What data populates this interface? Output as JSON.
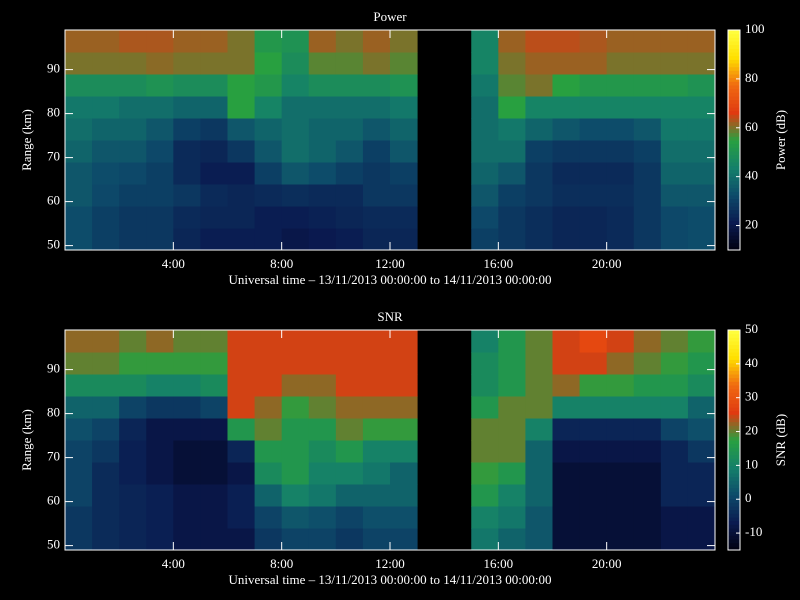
{
  "chart_data": [
    {
      "type": "heatmap",
      "title": "Power",
      "x_label": "Universal time – 13/11/2013 00:00:00 to 14/11/2013 00:00:00",
      "y_label": "Range (km)",
      "colorbar_label": "Power (dB)",
      "x_bins": [
        0,
        1,
        2,
        3,
        4,
        5,
        6,
        7,
        8,
        9,
        10,
        11,
        12,
        13,
        14,
        15,
        16,
        17,
        18,
        19,
        20,
        21,
        22,
        23,
        24
      ],
      "y_bins": [
        49,
        54,
        59,
        64,
        69,
        74,
        79,
        84,
        89,
        94,
        99
      ],
      "xlim": [
        0,
        24
      ],
      "ylim": [
        49,
        99
      ],
      "zlim": [
        10,
        100
      ],
      "xticks": [
        {
          "value": 4,
          "label": "4:00"
        },
        {
          "value": 8,
          "label": "8:00"
        },
        {
          "value": 12,
          "label": "12:00"
        },
        {
          "value": 16,
          "label": "16:00"
        },
        {
          "value": 20,
          "label": "20:00"
        }
      ],
      "yticks": [
        50,
        60,
        70,
        80,
        90
      ],
      "zticks": [
        20,
        40,
        60,
        80,
        100
      ],
      "colors": [
        "#000010",
        "#0a1a50",
        "#0d4a6a",
        "#14806a",
        "#28a040",
        "#e03a10",
        "#f06a10",
        "#ffe000",
        "#ffff40"
      ],
      "values": [
        [
          33,
          30,
          28,
          28,
          24,
          22,
          22,
          22,
          20,
          21,
          22,
          24,
          24,
          null,
          null,
          30,
          28,
          26,
          24,
          24,
          25,
          28,
          32,
          33
        ],
        [
          33,
          30,
          28,
          28,
          25,
          24,
          24,
          22,
          22,
          23,
          24,
          25,
          25,
          null,
          null,
          32,
          28,
          26,
          24,
          24,
          25,
          28,
          32,
          33
        ],
        [
          35,
          32,
          30,
          30,
          28,
          25,
          24,
          25,
          26,
          25,
          25,
          28,
          28,
          null,
          null,
          35,
          30,
          28,
          26,
          26,
          26,
          28,
          35,
          35
        ],
        [
          35,
          33,
          32,
          30,
          25,
          22,
          22,
          30,
          35,
          33,
          30,
          28,
          30,
          null,
          null,
          38,
          35,
          28,
          25,
          25,
          25,
          28,
          38,
          38
        ],
        [
          38,
          35,
          35,
          32,
          25,
          24,
          28,
          35,
          40,
          38,
          35,
          30,
          35,
          null,
          null,
          40,
          40,
          30,
          28,
          28,
          28,
          30,
          40,
          40
        ],
        [
          40,
          38,
          38,
          35,
          30,
          28,
          35,
          38,
          40,
          38,
          38,
          35,
          38,
          null,
          null,
          40,
          42,
          38,
          35,
          33,
          33,
          35,
          42,
          42
        ],
        [
          42,
          42,
          40,
          40,
          38,
          38,
          55,
          45,
          40,
          40,
          40,
          40,
          42,
          null,
          null,
          40,
          55,
          45,
          45,
          45,
          45,
          45,
          45,
          45
        ],
        [
          48,
          48,
          48,
          50,
          48,
          48,
          55,
          52,
          45,
          48,
          48,
          48,
          50,
          null,
          null,
          42,
          58,
          60,
          55,
          52,
          52,
          52,
          52,
          50
        ],
        [
          60,
          60,
          60,
          61,
          60,
          60,
          60,
          55,
          48,
          58,
          58,
          60,
          58,
          null,
          null,
          45,
          60,
          62,
          62,
          62,
          60,
          60,
          60,
          60
        ],
        [
          62,
          62,
          63,
          63,
          62,
          62,
          60,
          52,
          50,
          62,
          60,
          62,
          60,
          null,
          null,
          45,
          62,
          64,
          64,
          63,
          62,
          62,
          62,
          62
        ]
      ]
    },
    {
      "type": "heatmap",
      "title": "SNR",
      "x_label": "Universal time – 13/11/2013 00:00:00 to 14/11/2013 00:00:00",
      "y_label": "Range (km)",
      "colorbar_label": "SNR (dB)",
      "x_bins": [
        0,
        1,
        2,
        3,
        4,
        5,
        6,
        7,
        8,
        9,
        10,
        11,
        12,
        13,
        14,
        15,
        16,
        17,
        18,
        19,
        20,
        21,
        22,
        23,
        24
      ],
      "y_bins": [
        49,
        54,
        59,
        64,
        69,
        74,
        79,
        84,
        89,
        94,
        99
      ],
      "xlim": [
        0,
        24
      ],
      "ylim": [
        49,
        99
      ],
      "zlim": [
        -15,
        50
      ],
      "xticks": [
        {
          "value": 4,
          "label": "4:00"
        },
        {
          "value": 8,
          "label": "8:00"
        },
        {
          "value": 12,
          "label": "12:00"
        },
        {
          "value": 16,
          "label": "16:00"
        },
        {
          "value": 20,
          "label": "20:00"
        }
      ],
      "yticks": [
        50,
        60,
        70,
        80,
        90
      ],
      "zticks": [
        -10,
        0,
        10,
        20,
        30,
        40,
        50
      ],
      "colors": [
        "#000010",
        "#0a1a50",
        "#0d4a6a",
        "#14806a",
        "#28a040",
        "#e03a10",
        "#f06a10",
        "#ffe000",
        "#ffff40"
      ],
      "values": [
        [
          -2,
          -4,
          -5,
          -6,
          -8,
          -8,
          -8,
          -2,
          0,
          0,
          -2,
          0,
          0,
          null,
          null,
          8,
          5,
          3,
          -10,
          -10,
          -10,
          -10,
          -8,
          -8
        ],
        [
          -2,
          -4,
          -5,
          -6,
          -8,
          -8,
          -6,
          0,
          3,
          2,
          0,
          2,
          2,
          null,
          null,
          10,
          8,
          3,
          -10,
          -10,
          -10,
          -10,
          -8,
          -8
        ],
        [
          0,
          -4,
          -5,
          -6,
          -8,
          -8,
          -6,
          5,
          10,
          8,
          5,
          5,
          5,
          null,
          null,
          15,
          10,
          5,
          -10,
          -10,
          -10,
          -10,
          -5,
          -5
        ],
        [
          0,
          -4,
          -6,
          -8,
          -10,
          -10,
          -8,
          12,
          15,
          10,
          10,
          8,
          5,
          null,
          null,
          18,
          15,
          5,
          -10,
          -10,
          -10,
          -10,
          -5,
          -5
        ],
        [
          0,
          -2,
          -6,
          -8,
          -10,
          -10,
          -5,
          15,
          15,
          12,
          15,
          10,
          10,
          null,
          null,
          20,
          20,
          5,
          -8,
          -8,
          -8,
          -8,
          -5,
          -2
        ],
        [
          2,
          0,
          -5,
          -8,
          -8,
          -8,
          15,
          20,
          15,
          15,
          20,
          18,
          18,
          null,
          null,
          20,
          20,
          10,
          -5,
          -5,
          -5,
          -5,
          0,
          2
        ],
        [
          5,
          5,
          0,
          -2,
          -2,
          0,
          25,
          22,
          18,
          20,
          22,
          22,
          22,
          null,
          null,
          15,
          20,
          20,
          10,
          10,
          10,
          10,
          10,
          5
        ],
        [
          12,
          12,
          12,
          10,
          10,
          12,
          25,
          25,
          22,
          22,
          25,
          25,
          25,
          null,
          null,
          12,
          15,
          20,
          22,
          18,
          18,
          15,
          15,
          12
        ],
        [
          20,
          20,
          18,
          18,
          18,
          18,
          25,
          25,
          25,
          25,
          25,
          25,
          25,
          null,
          null,
          12,
          15,
          20,
          25,
          25,
          22,
          20,
          18,
          15
        ],
        [
          22,
          22,
          20,
          22,
          20,
          20,
          25,
          25,
          25,
          25,
          25,
          25,
          25,
          null,
          null,
          10,
          15,
          20,
          25,
          28,
          25,
          22,
          20,
          18
        ]
      ]
    }
  ]
}
